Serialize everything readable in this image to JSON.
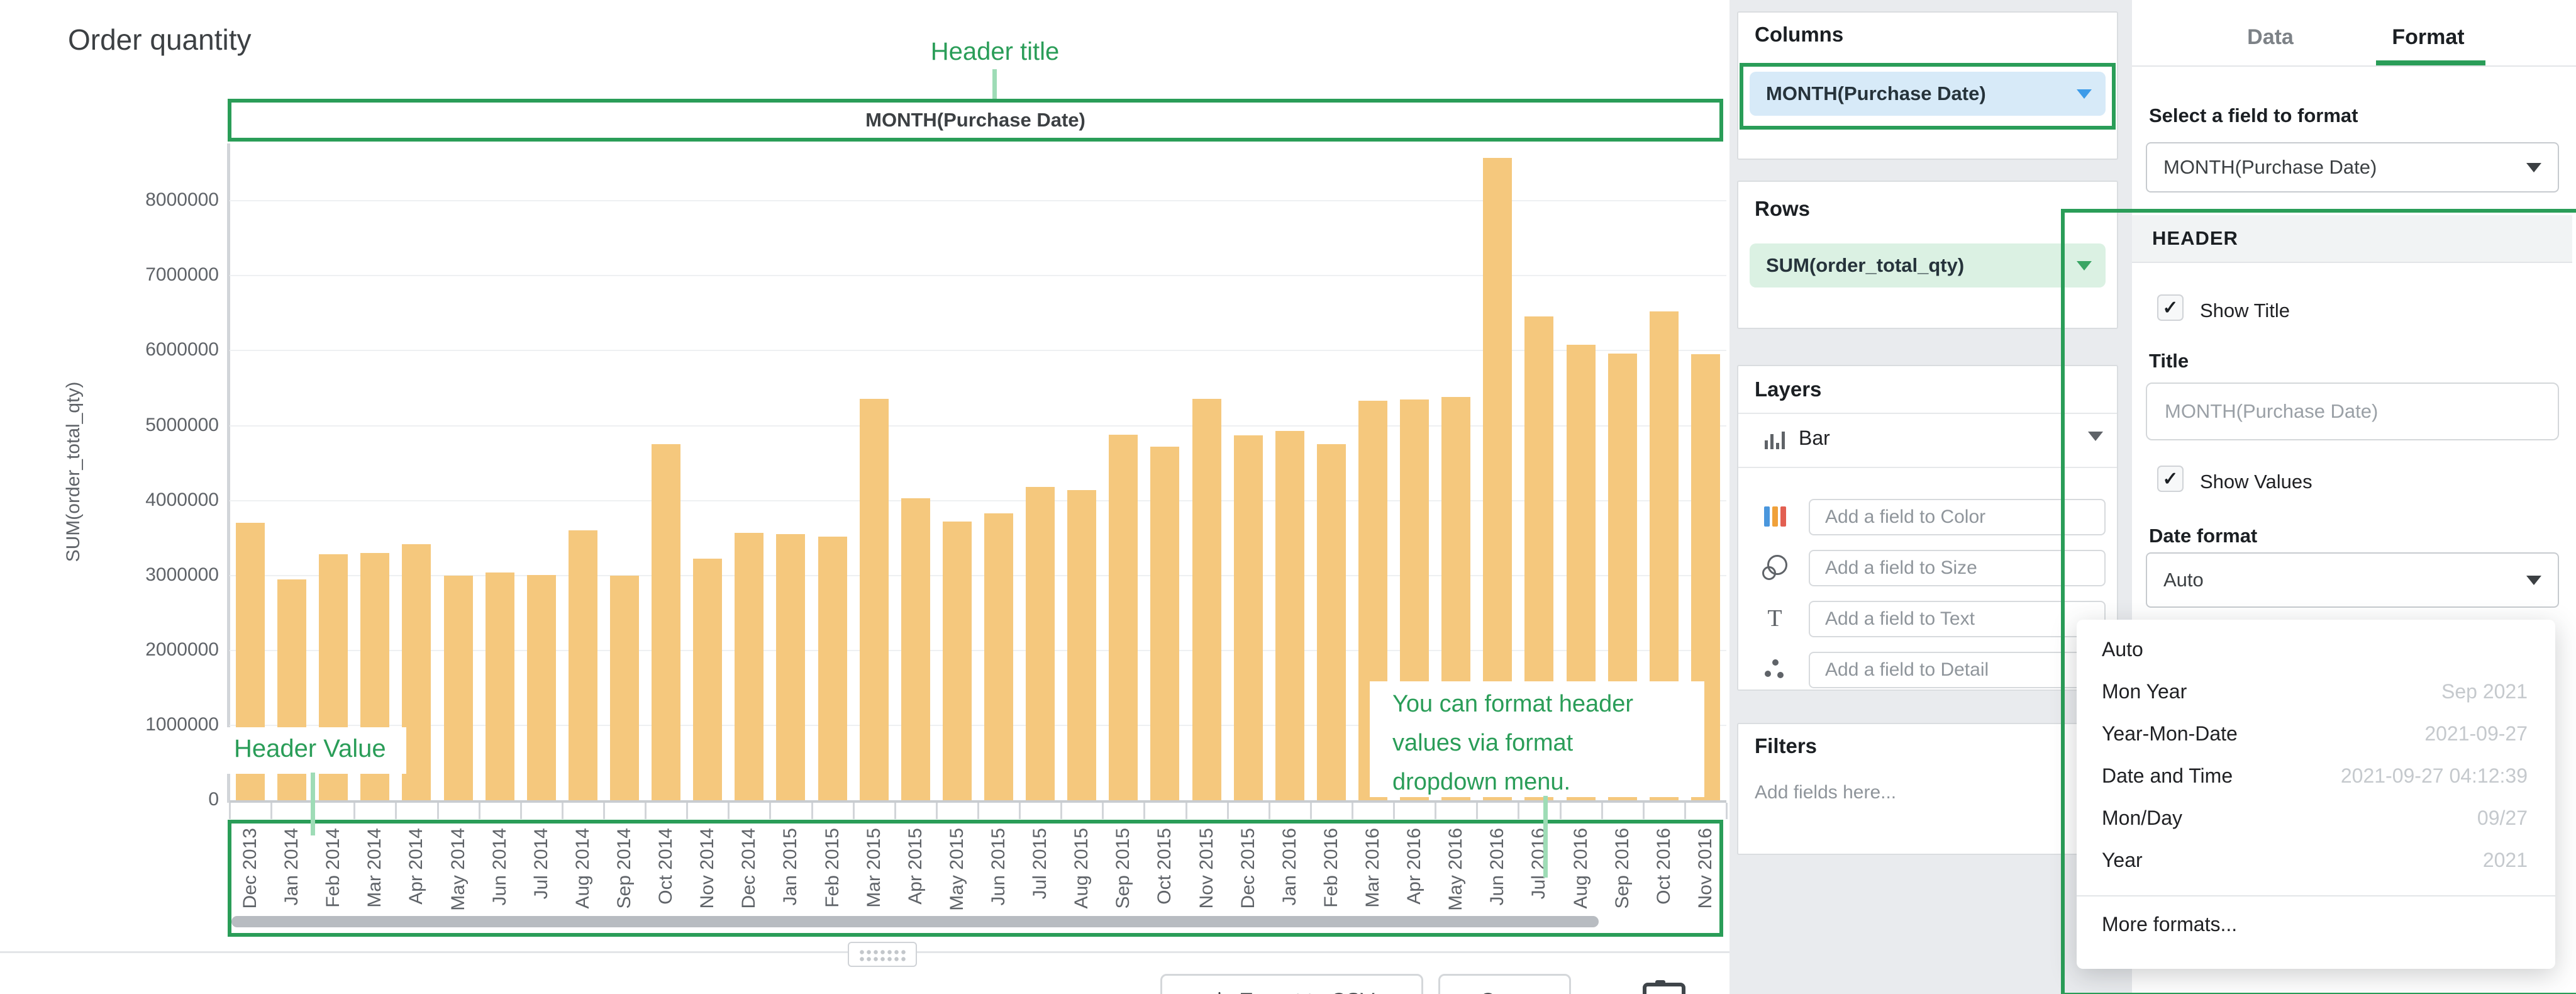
{
  "chart": {
    "title": "Order quantity",
    "y_axis_label": "SUM(order_total_qty)",
    "header_box_title": "MONTH(Purchase Date)",
    "y_ticks": [
      0,
      1000000,
      2000000,
      3000000,
      4000000,
      5000000,
      6000000,
      7000000,
      8000000
    ]
  },
  "chart_data": {
    "type": "bar",
    "title": "Order quantity",
    "xlabel": "MONTH(Purchase Date)",
    "ylabel": "SUM(order_total_qty)",
    "ylim": [
      0,
      8800000
    ],
    "grid": true,
    "bar_color": "#f5c87d",
    "categories": [
      "Dec 2013",
      "Jan 2014",
      "Feb 2014",
      "Mar 2014",
      "Apr 2014",
      "May 2014",
      "Jun 2014",
      "Jul 2014",
      "Aug 2014",
      "Sep 2014",
      "Oct 2014",
      "Nov 2014",
      "Dec 2014",
      "Jan 2015",
      "Feb 2015",
      "Mar 2015",
      "Apr 2015",
      "May 2015",
      "Jun 2015",
      "Jul 2015",
      "Aug 2015",
      "Sep 2015",
      "Oct 2015",
      "Nov 2015",
      "Dec 2015",
      "Jan 2016",
      "Feb 2016",
      "Mar 2016",
      "Apr 2016",
      "May 2016",
      "Jun 2016",
      "Jul 2016",
      "Aug 2016",
      "Sep 2016",
      "Oct 2016",
      "Nov 2016"
    ],
    "values": [
      3700000,
      2950000,
      3280000,
      3300000,
      3420000,
      3000000,
      3040000,
      3010000,
      3600000,
      3000000,
      4750000,
      3220000,
      3570000,
      3550000,
      3520000,
      5360000,
      4030000,
      3720000,
      3830000,
      4180000,
      4140000,
      4880000,
      4720000,
      5360000,
      4870000,
      4930000,
      4750000,
      5330000,
      5350000,
      5380000,
      8570000,
      6460000,
      6080000,
      5960000,
      6520000,
      5950000
    ]
  },
  "annotations": {
    "header_title": "Header title",
    "header_value": "Header Value",
    "format_note_lines": [
      "You can format header",
      "values via format",
      "dropdown menu."
    ],
    "accent_green": "#2a9d58",
    "line_green": "#9edcb6"
  },
  "toolbar": {
    "export_label": "Export to CSV",
    "copy_label": "Copy"
  },
  "pipeline": {
    "columns": {
      "title": "Columns",
      "field": "MONTH(Purchase Date)",
      "pill_bg": "#d7eaf8"
    },
    "rows": {
      "title": "Rows",
      "field": "SUM(order_total_qty)",
      "pill_bg": "#dbf1e3"
    },
    "layers": {
      "title": "Layers",
      "type_label": "Bar",
      "fields": [
        {
          "icon": "color-icon",
          "placeholder": "Add a field to Color"
        },
        {
          "icon": "size-icon",
          "placeholder": "Add a field to Size"
        },
        {
          "icon": "text-icon",
          "placeholder": "Add a field to Text"
        },
        {
          "icon": "detail-icon",
          "placeholder": "Add a field to Detail"
        }
      ]
    },
    "filters": {
      "title": "Filters",
      "placeholder": "Add fields here..."
    }
  },
  "format_panel": {
    "tabs": [
      {
        "label": "Data",
        "active": false
      },
      {
        "label": "Format",
        "active": true
      }
    ],
    "select_field_label": "Select a field to format",
    "selected_field": "MONTH(Purchase Date)",
    "section_title": "HEADER",
    "show_title": {
      "label": "Show Title",
      "checked": true
    },
    "title_label": "Title",
    "title_placeholder": "MONTH(Purchase Date)",
    "show_values": {
      "label": "Show Values",
      "checked": true
    },
    "date_format_label": "Date format",
    "date_format_value": "Auto",
    "dropdown": {
      "items": [
        {
          "label": "Auto",
          "example": ""
        },
        {
          "label": "Mon Year",
          "example": "Sep 2021"
        },
        {
          "label": "Year-Mon-Date",
          "example": "2021-09-27"
        },
        {
          "label": "Date and Time",
          "example": "2021-09-27 04:12:39"
        },
        {
          "label": "Mon/Day",
          "example": "09/27"
        },
        {
          "label": "Year",
          "example": "2021"
        }
      ],
      "footer": "More formats..."
    }
  }
}
